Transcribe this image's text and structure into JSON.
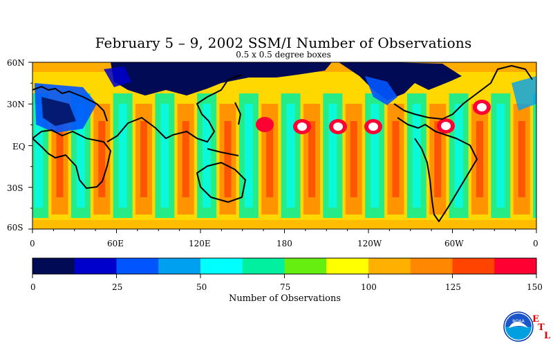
{
  "title": "February 5 – 9, 2002 SSM/I Number of Observations",
  "subtitle": "0.5 x 0.5 degree boxes",
  "map": {
    "lat_labels": [
      "60N",
      "30N",
      "EQ",
      "30S",
      "60S"
    ],
    "lon_labels": [
      "0",
      "60E",
      "120E",
      "180",
      "120W",
      "60W",
      "0"
    ]
  },
  "colorbar": {
    "label": "Number of Observations",
    "tick_labels": [
      "0",
      "25",
      "50",
      "75",
      "100",
      "125",
      "150"
    ],
    "colors": [
      "#000a55",
      "#0000cc",
      "#0055ff",
      "#00a0f0",
      "#00ffff",
      "#00f0a0",
      "#66ee11",
      "#ffff00",
      "#ffb000",
      "#ff8800",
      "#ff4400",
      "#ff0033"
    ]
  },
  "credit": {
    "logo_text": "NOAA",
    "letters": [
      "E",
      "T",
      "L"
    ]
  }
}
